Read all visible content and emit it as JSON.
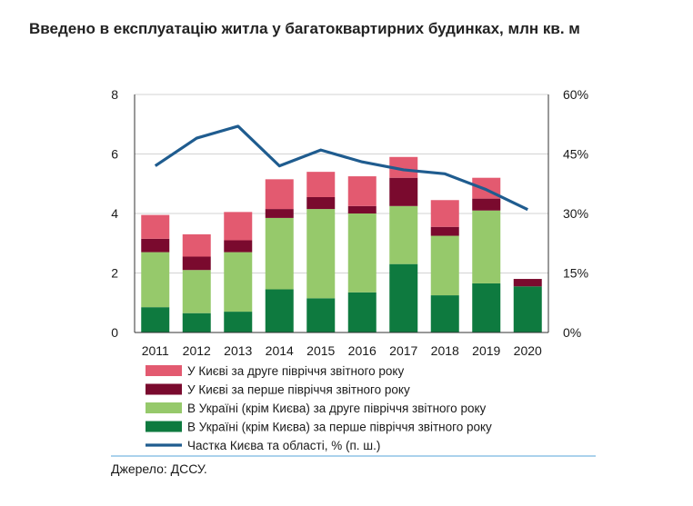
{
  "title": "Введено в експлуатацію житла у багатоквартирних будинках, млн кв. м",
  "source": "Джерело: ДССУ.",
  "chart_data": {
    "type": "bar",
    "stacked": true,
    "categories": [
      "2011",
      "2012",
      "2013",
      "2014",
      "2015",
      "2016",
      "2017",
      "2018",
      "2019",
      "2020"
    ],
    "y_left": {
      "ticks": [
        "0",
        "2",
        "4",
        "6",
        "8"
      ],
      "ylim": [
        0,
        8
      ]
    },
    "y_right": {
      "ticks": [
        "0%",
        "15%",
        "30%",
        "45%",
        "60%"
      ],
      "ylim": [
        0,
        60
      ]
    },
    "series": [
      {
        "name": "В Україні (крім Києва) за перше півріччя звітного року",
        "kind": "bar",
        "color": "#0e7a3f",
        "values": [
          0.85,
          0.65,
          0.7,
          1.45,
          1.15,
          1.35,
          2.3,
          1.25,
          1.65,
          1.55
        ]
      },
      {
        "name": "В Україні (крім Києва) за друге півріччя звітного року",
        "kind": "bar",
        "color": "#96c96b",
        "values": [
          1.85,
          1.45,
          2.0,
          2.4,
          3.0,
          2.65,
          1.95,
          2.0,
          2.45,
          0.0
        ]
      },
      {
        "name": "У Києві за перше півріччя звітного року",
        "kind": "bar",
        "color": "#7a0a2e",
        "values": [
          0.45,
          0.45,
          0.4,
          0.3,
          0.4,
          0.25,
          0.95,
          0.3,
          0.4,
          0.25
        ]
      },
      {
        "name": "У Києві за друге півріччя звітного року",
        "kind": "bar",
        "color": "#e35a70",
        "values": [
          0.8,
          0.75,
          0.95,
          1.0,
          0.85,
          1.0,
          0.7,
          0.9,
          0.7,
          0.0
        ]
      },
      {
        "name": "Частка Києва та області, % (п. ш.)",
        "kind": "line",
        "axis": "right",
        "color": "#1f5c8f",
        "values": [
          42,
          49,
          52,
          42,
          46,
          43,
          41,
          40,
          36,
          31
        ]
      }
    ],
    "legend_order": [
      3,
      2,
      1,
      0,
      4
    ]
  }
}
